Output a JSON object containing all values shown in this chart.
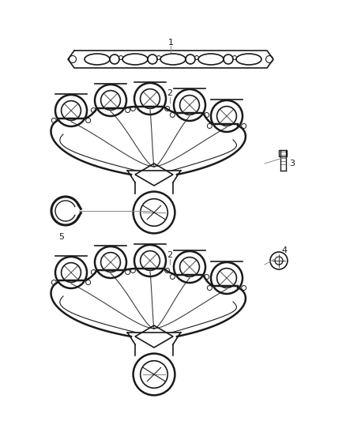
{
  "bg_color": "#ffffff",
  "line_color": "#1a1a1a",
  "label_color": "#1a1a1a",
  "leader_color": "#888888",
  "fig_width": 4.38,
  "fig_height": 5.33,
  "dpi": 100
}
